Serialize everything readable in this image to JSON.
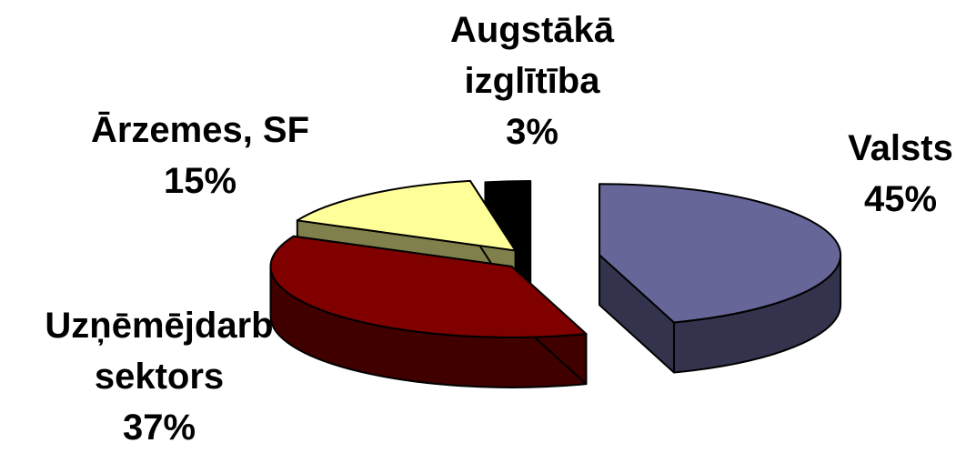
{
  "chart_data": {
    "type": "pie3d",
    "categories": [
      "Valsts",
      "Uzņēmējdarb sektors",
      "Ārzemes, SF",
      "Augstākā izglītība"
    ],
    "values": [
      45,
      37,
      15,
      3
    ],
    "value_labels": [
      "45%",
      "37%",
      "15%",
      "3%"
    ],
    "colors": [
      "#666699",
      "#800000",
      "#ffff99",
      "#000000"
    ]
  }
}
